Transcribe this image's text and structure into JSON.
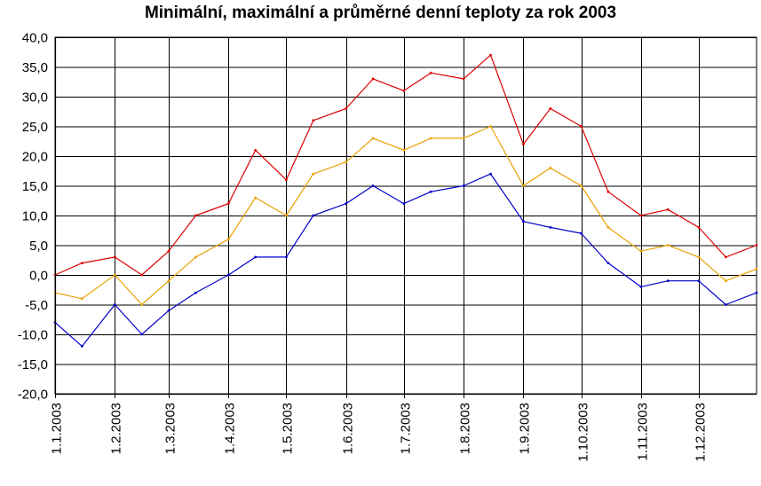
{
  "chart_data": {
    "type": "line",
    "title": "Minimální, maximální a průměrné denní teploty za rok 2003",
    "xlabel": "",
    "ylabel": "",
    "ylim": [
      -20,
      40
    ],
    "grid": true,
    "legend": "none",
    "y_ticks": [
      "-20,0",
      "-15,0",
      "-10,0",
      "-5,0",
      "0,0",
      "5,0",
      "10,0",
      "15,0",
      "20,0",
      "25,0",
      "30,0",
      "35,0",
      "40,0"
    ],
    "x_ticks": [
      "1.1.2003",
      "1.2.2003",
      "1.3.2003",
      "1.4.2003",
      "1.5.2003",
      "1.6.2003",
      "1.7.2003",
      "1.8.2003",
      "1.9.2003",
      "1.10.2003",
      "1.11.2003",
      "1.12.2003"
    ],
    "x": [
      "1.1.2003",
      "15.1.2003",
      "1.2.2003",
      "15.2.2003",
      "1.3.2003",
      "15.3.2003",
      "1.4.2003",
      "15.4.2003",
      "1.5.2003",
      "15.5.2003",
      "1.6.2003",
      "15.6.2003",
      "1.7.2003",
      "15.7.2003",
      "1.8.2003",
      "15.8.2003",
      "1.9.2003",
      "15.9.2003",
      "1.10.2003",
      "15.10.2003",
      "1.11.2003",
      "15.11.2003",
      "1.12.2003",
      "15.12.2003",
      "31.12.2003"
    ],
    "series": [
      {
        "color": "#dd0000",
        "values": [
          0,
          2,
          3,
          0,
          4,
          10,
          12,
          21,
          16,
          26,
          28,
          33,
          31,
          34,
          33,
          37,
          22,
          28,
          25,
          14,
          10,
          11,
          8,
          3,
          5
        ]
      },
      {
        "color": "#e8a000",
        "values": [
          -3,
          -4,
          0,
          -5,
          -1,
          3,
          6,
          13,
          10,
          17,
          19,
          23,
          21,
          23,
          23,
          25,
          15,
          18,
          15,
          8,
          4,
          5,
          3,
          -1,
          1
        ]
      },
      {
        "color": "#0000cc",
        "values": [
          -8,
          -12,
          -5,
          -10,
          -6,
          -3,
          0,
          3,
          3,
          10,
          12,
          15,
          12,
          14,
          15,
          17,
          9,
          8,
          7,
          2,
          -2,
          -1,
          -1,
          -5,
          -3
        ]
      }
    ]
  }
}
